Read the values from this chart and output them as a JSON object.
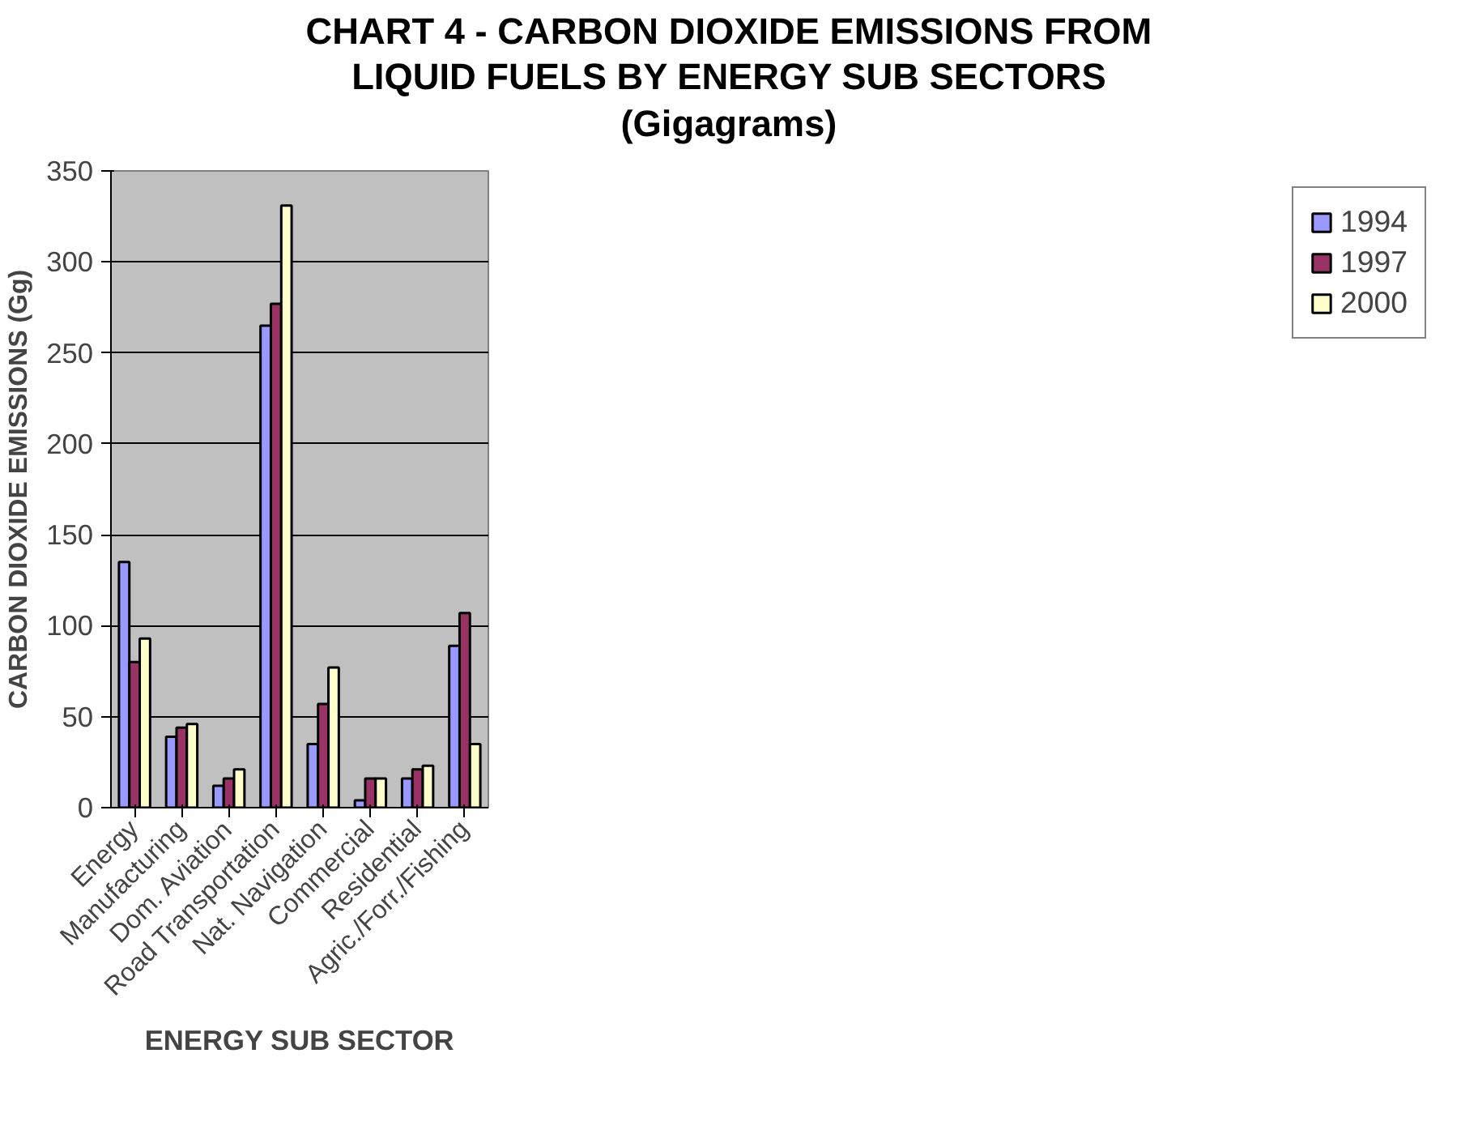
{
  "chart_data": {
    "type": "bar",
    "title": "CHART 4 - CARBON DIOXIDE EMISSIONS FROM\nLIQUID FUELS BY ENERGY SUB SECTORS\n(Gigagrams)",
    "xlabel": "ENERGY SUB SECTOR",
    "ylabel": "CARBON DIOXIDE EMISSIONS (Gg)",
    "categories": [
      "Energy",
      "Manufacturing",
      "Dom. Aviation",
      "Road Transportation",
      "Nat. Navigation",
      "Commercial",
      "Residential",
      "Agric./Forr./Fishing"
    ],
    "series": [
      {
        "name": "1994",
        "color": "#9999ff",
        "values": [
          135,
          39,
          12,
          265,
          35,
          4,
          16,
          89
        ]
      },
      {
        "name": "1997",
        "color": "#993366",
        "values": [
          80,
          44,
          16,
          277,
          57,
          16,
          21,
          107
        ]
      },
      {
        "name": "2000",
        "color": "#ffffcc",
        "values": [
          93,
          46,
          21,
          331,
          77,
          16,
          23,
          35
        ]
      }
    ],
    "ylim": [
      0,
      350
    ],
    "yticks": [
      0,
      50,
      100,
      150,
      200,
      250,
      300,
      350
    ],
    "grid": "y",
    "legend": "right"
  }
}
